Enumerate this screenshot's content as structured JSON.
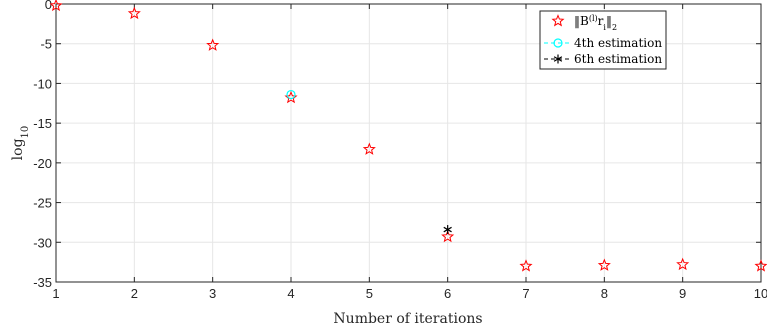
{
  "chart_data": {
    "type": "scatter",
    "xlabel": "Number of iterations",
    "ylabel": "log10",
    "xlim": [
      1,
      10
    ],
    "ylim": [
      -35,
      0
    ],
    "xticks": [
      1,
      2,
      3,
      4,
      5,
      6,
      7,
      8,
      9,
      10
    ],
    "yticks": [
      0,
      -5,
      -10,
      -15,
      -20,
      -25,
      -30,
      -35
    ],
    "grid": true,
    "legend_position": "top-right",
    "series": [
      {
        "name": "‖B^(l) r_i‖_2",
        "marker": "star",
        "color": "#ff0000",
        "x": [
          1,
          2,
          3,
          4,
          5,
          6,
          7,
          8,
          9,
          10
        ],
        "y": [
          -0.2,
          -1.2,
          -5.2,
          -11.8,
          -18.3,
          -29.3,
          -33.0,
          -32.9,
          -32.8,
          -33.0
        ]
      },
      {
        "name": "4th estimation",
        "marker": "circle",
        "color": "#00ffff",
        "x": [
          4
        ],
        "y": [
          -11.4
        ]
      },
      {
        "name": "6th estimation",
        "marker": "asterisk",
        "color": "#000000",
        "x": [
          6
        ],
        "y": [
          -28.4
        ]
      }
    ]
  }
}
